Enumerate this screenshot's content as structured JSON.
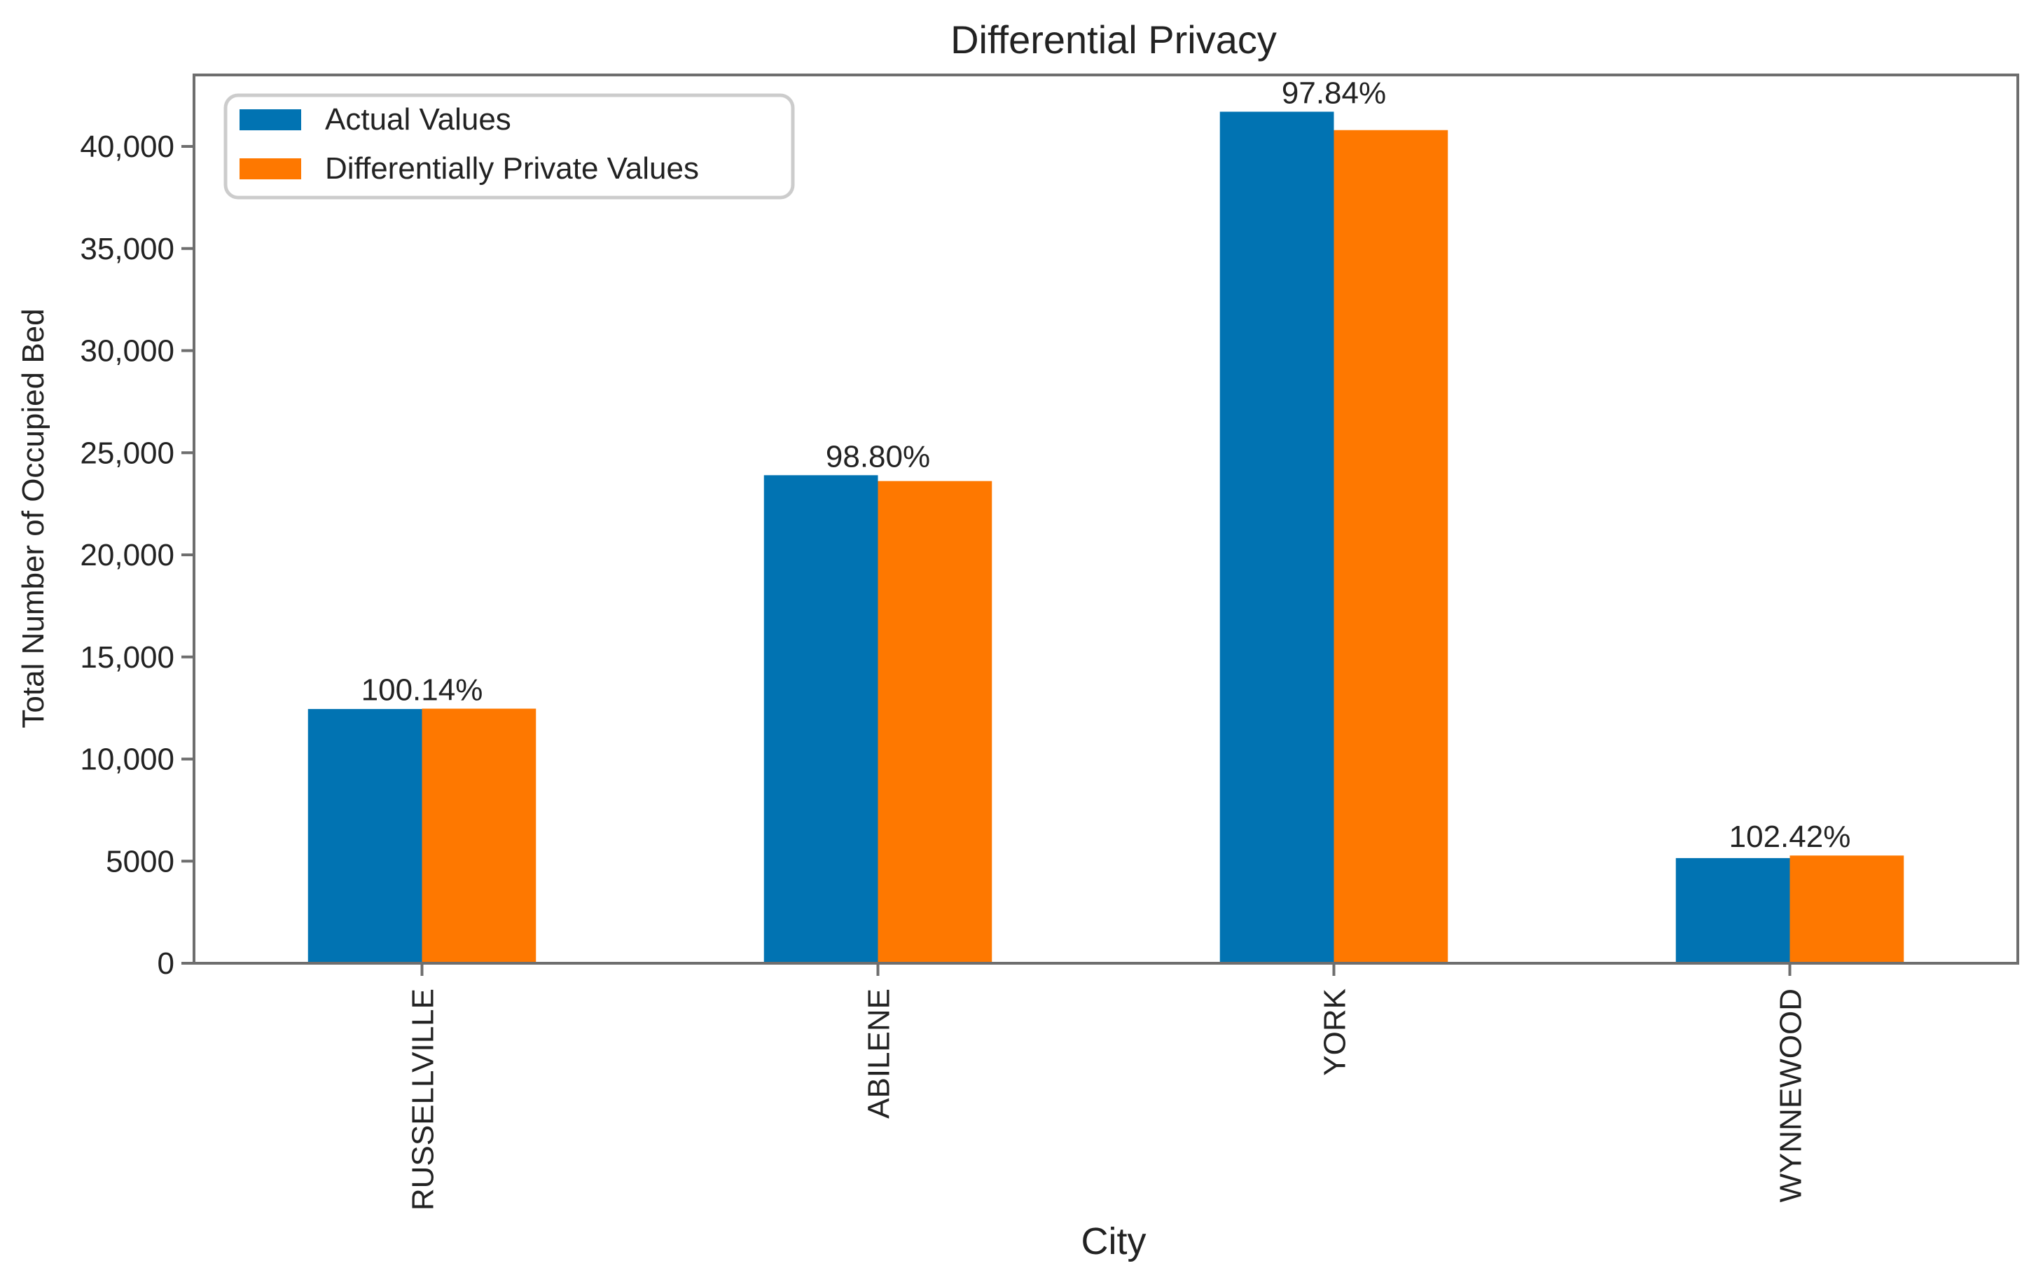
{
  "chart_data": {
    "type": "bar",
    "title": "Differential Privacy",
    "xlabel": "City",
    "ylabel": "Total Number of Occupied Bed",
    "categories": [
      "RUSSELLVILLE",
      "ABILENE",
      "YORK",
      "WYNNEWOOD"
    ],
    "series": [
      {
        "name": "Actual Values",
        "color": "#0173b2",
        "values": [
          12450,
          23900,
          41700,
          5150
        ]
      },
      {
        "name": "Differentially Private Values",
        "color": "#fe7800",
        "values": [
          12468,
          23613,
          40799,
          5275
        ]
      }
    ],
    "data_labels": [
      "100.14%",
      "98.80%",
      "97.84%",
      "102.42%"
    ],
    "ylim": [
      0,
      43500
    ],
    "yticks": [
      0,
      5000,
      10000,
      15000,
      20000,
      25000,
      30000,
      35000,
      40000
    ],
    "ytick_labels": [
      "0",
      "5000",
      "10,000",
      "15,000",
      "20,000",
      "25,000",
      "30,000",
      "35,000",
      "40,000"
    ],
    "grid": false,
    "legend_position": "top-left"
  }
}
